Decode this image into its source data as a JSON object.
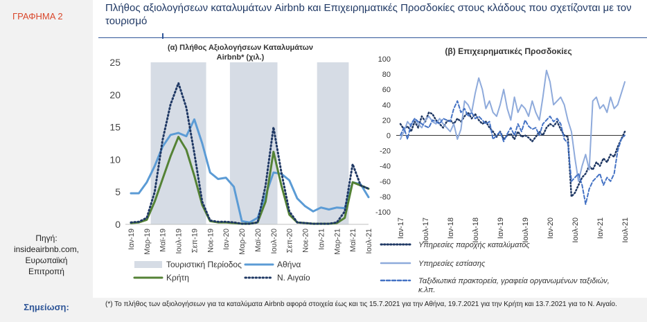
{
  "figure_label": "ΓΡΑΦΗΜΑ 2",
  "title": "Πλήθος αξιολογήσεων καταλυμάτων Airbnb και Επιχειρηματικές Προσδοκίες στους κλάδους που σχετίζονται με τον τουρισμό",
  "source": [
    "Πηγή:",
    "insideairbnb.com,",
    "Ευρωπαϊκή",
    "Επιτροπή"
  ],
  "note_label": "Σημείωση:",
  "note_text": "(*) Το πλήθος των αξιολογήσεων για τα καταλύματα Airbnb αφορά στοιχεία έως και τις 15.7.2021 για την Αθήνα, 19.7.2021 για την Κρήτη και 13.7.2021 για το Ν. Αιγαίο.",
  "colors": {
    "accent": "#2e5597",
    "athens": "#5b9bd5",
    "crete": "#548235",
    "aegean": "#1f3864",
    "shade": "#d6dce5",
    "restaurants": "#8eaadb",
    "travel": "#4472c4"
  },
  "chart_data": [
    {
      "type": "line",
      "title": "(α) Πλήθος Αξιολογήσεων Καταλυμάτων Airbnb* (χιλ.)",
      "categories": [
        "Ιαν-19",
        "Φεβ-19",
        "Μαρ-19",
        "Απρ-19",
        "Μαϊ-19",
        "Ιουν-19",
        "Ιουλ-19",
        "Αυγ-19",
        "Σεπ-19",
        "Οκτ-19",
        "Νοε-19",
        "Δεκ-19",
        "Ιαν-20",
        "Φεβ-20",
        "Μαρ-20",
        "Απρ-20",
        "Μαϊ-20",
        "Ιουν-20",
        "Ιουλ-20",
        "Αυγ-20",
        "Σεπ-20",
        "Οκτ-20",
        "Νοε-20",
        "Δεκ-20",
        "Ιαν-21",
        "Φεβ-21",
        "Μαρ-21",
        "Απρ-21",
        "Μαϊ-21",
        "Ιουν-21",
        "Ιουλ-21"
      ],
      "tick_labels": [
        "Ιαν-19",
        "Μαρ-19",
        "Μαϊ-19",
        "Ιουλ-19",
        "Σεπ-19",
        "Νοε-19",
        "Ιαν-20",
        "Μαρ-20",
        "Μαϊ-20",
        "Ιουλ-20",
        "Σεπ-20",
        "Νοε-20",
        "Ιαν-21",
        "Μαρ-21",
        "Μαϊ-21",
        "Ιουλ-21"
      ],
      "ylim": [
        0,
        25
      ],
      "yticks": [
        0,
        5,
        10,
        15,
        20,
        25
      ],
      "shaded_periods": [
        [
          3,
          9
        ],
        [
          13,
          18
        ],
        [
          24,
          27
        ]
      ],
      "legend": {
        "shade": "Τουριστική Περίοδος"
      },
      "series": [
        {
          "name": "Αθήνα",
          "values": [
            4.8,
            4.8,
            6.5,
            9.0,
            12.0,
            13.8,
            14.1,
            13.6,
            16.2,
            12.5,
            8.0,
            7.0,
            7.2,
            5.8,
            0.5,
            0.3,
            1.0,
            4.5,
            8.0,
            7.8,
            6.8,
            4.0,
            2.8,
            2.0,
            2.6,
            2.3,
            2.6,
            2.5,
            6.5,
            6.2,
            4.2
          ]
        },
        {
          "name": "Κρήτη",
          "values": [
            0.2,
            0.3,
            0.7,
            3.5,
            7.0,
            10.5,
            13.5,
            11.5,
            7.5,
            3.0,
            0.5,
            0.3,
            0.3,
            0.2,
            0.1,
            0.1,
            0.3,
            3.5,
            11.2,
            6.0,
            1.5,
            0.3,
            0.2,
            0.1,
            0.1,
            0.1,
            0.2,
            1.0,
            6.5,
            6.0,
            5.5
          ]
        },
        {
          "name": "Ν. Αιγαίο",
          "values": [
            0.3,
            0.4,
            1.0,
            5.0,
            13.0,
            18.5,
            21.8,
            18.0,
            11.0,
            3.5,
            0.6,
            0.4,
            0.4,
            0.3,
            0.1,
            0.1,
            0.3,
            6.0,
            15.0,
            8.0,
            2.0,
            0.3,
            0.2,
            0.1,
            0.1,
            0.1,
            0.3,
            2.0,
            9.3,
            6.0,
            5.5
          ]
        }
      ]
    },
    {
      "type": "line",
      "title": "(β) Επιχειρηματικές Προσδοκίες",
      "tick_labels": [
        "Ιαν-17",
        "Ιουλ-17",
        "Ιαν-18",
        "Ιουλ-18",
        "Ιαν-19",
        "Ιουλ-19",
        "Ιαν-20",
        "Ιουλ-20",
        "Ιαν-21",
        "Ιουλ-21"
      ],
      "x_start": "Ιαν-17",
      "ylim": [
        -100,
        100
      ],
      "yticks": [
        100,
        80,
        60,
        40,
        20,
        0,
        -20,
        -40,
        -60,
        -80,
        -100
      ],
      "series": [
        {
          "name": "Υπηρεσίες παροχής καταλύματος",
          "values": [
            15,
            8,
            12,
            5,
            18,
            10,
            25,
            18,
            30,
            28,
            20,
            15,
            10,
            18,
            20,
            15,
            22,
            18,
            25,
            30,
            22,
            28,
            20,
            15,
            18,
            10,
            5,
            -2,
            5,
            -5,
            0,
            2,
            -5,
            5,
            -2,
            0,
            -3,
            -8,
            -2,
            5,
            0,
            10,
            15,
            12,
            18,
            8,
            0,
            -2,
            -80,
            -75,
            -65,
            -55,
            -50,
            -40,
            -45,
            -35,
            -40,
            -30,
            -35,
            -25,
            -28,
            -15,
            -5,
            5
          ]
        },
        {
          "name": "Υπηρεσίες εστίασης",
          "values": [
            -5,
            5,
            18,
            12,
            22,
            15,
            10,
            20,
            25,
            18,
            15,
            22,
            15,
            10,
            5,
            15,
            -5,
            8,
            45,
            40,
            30,
            55,
            75,
            60,
            35,
            45,
            30,
            25,
            40,
            60,
            35,
            20,
            50,
            30,
            40,
            35,
            25,
            45,
            30,
            20,
            50,
            85,
            70,
            40,
            45,
            50,
            40,
            20,
            5,
            -30,
            -60,
            -40,
            -25,
            -45,
            45,
            50,
            35,
            40,
            30,
            50,
            35,
            40,
            55,
            70
          ]
        },
        {
          "name": "Ταξιδιωτικά πρακτορεία, γραφεία οργανωμένων ταξιδιών, κ.λπ.",
          "values": [
            0,
            10,
            -5,
            15,
            22,
            18,
            15,
            12,
            10,
            20,
            18,
            15,
            22,
            20,
            18,
            35,
            45,
            30,
            35,
            25,
            30,
            22,
            25,
            20,
            15,
            18,
            -5,
            0,
            5,
            -8,
            2,
            10,
            0,
            15,
            5,
            20,
            12,
            8,
            10,
            0,
            15,
            20,
            25,
            18,
            22,
            15,
            -5,
            -10,
            -60,
            -55,
            -50,
            -65,
            -90,
            -70,
            -60,
            -55,
            -50,
            -65,
            -55,
            -60,
            -50,
            -20,
            -5,
            0
          ]
        }
      ]
    }
  ]
}
